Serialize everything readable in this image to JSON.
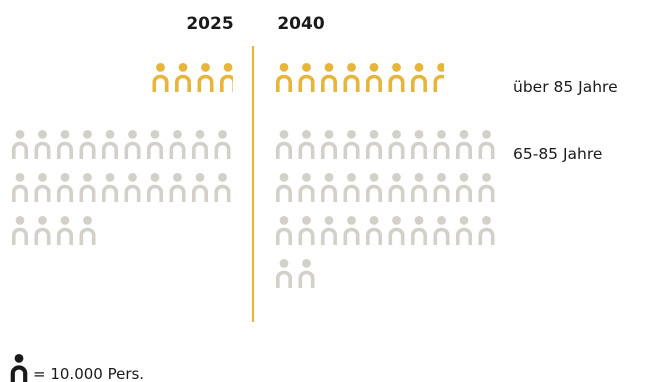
{
  "chart_data": {
    "type": "pictograph",
    "unit_legend": "= 10.000 Pers.",
    "unit_value": 10000,
    "columns": [
      "2025",
      "2040"
    ],
    "series": [
      {
        "name": "über 85 Jahre",
        "color": "#e6b53a",
        "values": [
          3.8,
          7.7
        ]
      },
      {
        "name": "65-85 Jahre",
        "color": "#d3d0c9",
        "values": [
          24,
          32
        ]
      }
    ]
  }
}
